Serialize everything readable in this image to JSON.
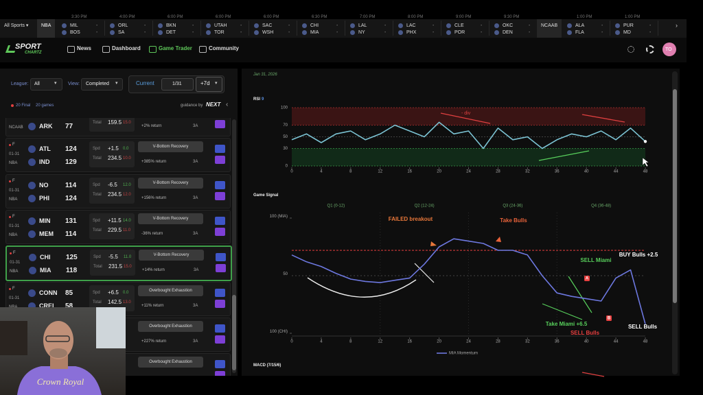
{
  "ticker": {
    "filter": "All Sports ▾",
    "league": "NBA",
    "games": [
      {
        "time": "3:30 PM",
        "away": "MIL",
        "home": "BOS",
        "away_score": "-",
        "home_score": "-"
      },
      {
        "time": "4:00 PM",
        "away": "ORL",
        "home": "SA",
        "away_score": "-",
        "home_score": "-"
      },
      {
        "time": "6:00 PM",
        "away": "BKN",
        "home": "DET",
        "away_score": "-",
        "home_score": "-"
      },
      {
        "time": "6:00 PM",
        "away": "UTAH",
        "home": "TOR",
        "away_score": "-",
        "home_score": "-"
      },
      {
        "time": "6:00 PM",
        "away": "SAC",
        "home": "WSH",
        "away_score": "-",
        "home_score": "-"
      },
      {
        "time": "6:30 PM",
        "away": "CHI",
        "home": "MIA",
        "away_score": "-",
        "home_score": "-"
      },
      {
        "time": "7:00 PM",
        "away": "LAL",
        "home": "NY",
        "away_score": "-",
        "home_score": "-"
      },
      {
        "time": "8:00 PM",
        "away": "LAC",
        "home": "PHX",
        "away_score": "-",
        "home_score": "-"
      },
      {
        "time": "9:00 PM",
        "away": "CLE",
        "home": "POR",
        "away_score": "-",
        "home_score": "-"
      },
      {
        "time": "9:30 PM",
        "away": "OKC",
        "home": "DEN",
        "away_score": "-",
        "home_score": "-"
      }
    ],
    "section": "NCAAB",
    "section_games": [
      {
        "time": "1:00 PM",
        "away": "ALA",
        "home": "FLA",
        "away_score": "-",
        "home_score": "-"
      },
      {
        "time": "1:00 PM",
        "away": "PUR",
        "home": "MD",
        "away_score": "-",
        "home_score": "-"
      }
    ]
  },
  "nav": {
    "logo_top": "SPORT",
    "logo_bottom": "CHARTZ",
    "links": [
      "News",
      "Dashboard",
      "Game Trader",
      "Community"
    ],
    "avatar": "TO"
  },
  "filters": {
    "league_label": "League:",
    "league": "All",
    "view_label": "View:",
    "view": "Completed",
    "current": "Current",
    "date": "1/31",
    "range": "+7d"
  },
  "summary": {
    "final": "20 Final",
    "games": "20 games",
    "guidance": "guidance by",
    "partner": "NEXT"
  },
  "games": [
    {
      "league": "NCAAB",
      "home": {
        "abbr": "ARK",
        "score": 77
      },
      "total": {
        "label": "Total",
        "line": "159.5",
        "juice": "15.0"
      },
      "return": "+2% return",
      "grade": "3A"
    },
    {
      "status": "F",
      "date": "01-31",
      "league": "NBA",
      "away": {
        "abbr": "ATL",
        "score": 124
      },
      "home": {
        "abbr": "IND",
        "score": 129
      },
      "spread": {
        "label": "Spd",
        "line": "+1.5",
        "juice": "0.0"
      },
      "total": {
        "label": "Total",
        "line": "234.5",
        "juice": "10.0"
      },
      "pattern": "V-Bottom Recovery",
      "return": "+385% return",
      "grade": "3A"
    },
    {
      "status": "F",
      "date": "01-31",
      "league": "NBA",
      "away": {
        "abbr": "NO",
        "score": 114
      },
      "home": {
        "abbr": "PHI",
        "score": 124
      },
      "spread": {
        "label": "Spd",
        "line": "-6.5",
        "juice": "12.0"
      },
      "total": {
        "label": "Total",
        "line": "234.5",
        "juice": "12.0"
      },
      "pattern": "V-Bottom Recovery",
      "return": "+156% return",
      "grade": "3A"
    },
    {
      "status": "F",
      "date": "01-31",
      "league": "NBA",
      "away": {
        "abbr": "MIN",
        "score": 131
      },
      "home": {
        "abbr": "MEM",
        "score": 114
      },
      "spread": {
        "label": "Spd",
        "line": "+11.5",
        "juice": "14.0"
      },
      "total": {
        "label": "Total",
        "line": "229.5",
        "juice": "11.0"
      },
      "pattern": "V-Bottom Recovery",
      "return": "-36% return",
      "grade": "3A"
    },
    {
      "status": "F",
      "date": "01-31",
      "league": "NBA",
      "selected": true,
      "away": {
        "abbr": "CHI",
        "score": 125
      },
      "home": {
        "abbr": "MIA",
        "score": 118
      },
      "spread": {
        "label": "Spd",
        "line": "-5.5",
        "juice": "11.0"
      },
      "total": {
        "label": "Total",
        "line": "231.5",
        "juice": "15.0"
      },
      "pattern": "V-Bottom Recovery",
      "return": "+14% return",
      "grade": "3A"
    },
    {
      "status": "F",
      "date": "01-31",
      "league": "NBA",
      "away": {
        "abbr": "CONN",
        "score": 85
      },
      "home": {
        "abbr": "CREI",
        "score": 58
      },
      "spread": {
        "label": "Spd",
        "line": "+6.5",
        "juice": "0.0"
      },
      "total": {
        "label": "Total",
        "line": "142.5",
        "juice": "13.0"
      },
      "pattern": "Overbought Exhaustion",
      "return": "+11% return",
      "grade": "3A"
    },
    {
      "pattern": "Overbought Exhaustion",
      "return": "+227% return",
      "grade": "3A"
    },
    {
      "pattern": "Overbought Exhaustion"
    }
  ],
  "date": "Jan 31, 2026",
  "rsi_chart": {
    "type": "line",
    "title": "RSI",
    "period": "9",
    "color": "#7cc4d4",
    "x": [
      0,
      2,
      4,
      6,
      8,
      10,
      12,
      14,
      16,
      18,
      20,
      22,
      24,
      26,
      28,
      30,
      32,
      34,
      36,
      38,
      40,
      42,
      44,
      46,
      48
    ],
    "values": [
      45,
      55,
      40,
      55,
      60,
      45,
      55,
      70,
      60,
      50,
      75,
      55,
      60,
      30,
      65,
      45,
      50,
      30,
      45,
      55,
      50,
      60,
      45,
      65,
      42
    ],
    "xlim": [
      0,
      48
    ],
    "ylim": [
      0,
      100
    ],
    "xticks": [
      0,
      4,
      8,
      12,
      16,
      20,
      24,
      28,
      32,
      36,
      40,
      44,
      48
    ],
    "yticks": [
      0,
      30,
      50,
      70,
      100
    ],
    "overbought": 70,
    "oversold": 30,
    "annotation": "- div"
  },
  "signal_chart": {
    "type": "line",
    "title": "Game Signal",
    "series_name": "MIA Momentum",
    "color": "#6d78e0",
    "x": [
      0,
      2,
      4,
      6,
      8,
      10,
      12,
      14,
      16,
      18,
      20,
      22,
      24,
      26,
      28,
      30,
      32,
      34,
      36,
      38,
      40,
      42,
      44,
      46,
      48
    ],
    "values": [
      68,
      62,
      58,
      52,
      47,
      45,
      44,
      46,
      48,
      60,
      75,
      82,
      80,
      78,
      72,
      72,
      68,
      50,
      35,
      32,
      30,
      28,
      48,
      55,
      8
    ],
    "xlim": [
      0,
      48
    ],
    "ylim": [
      0,
      100
    ],
    "xticks": [
      0,
      4,
      8,
      12,
      16,
      20,
      24,
      28,
      32,
      36,
      40,
      44,
      48
    ],
    "yticks": [
      {
        "value": 0,
        "label": "100 (CHI)"
      },
      {
        "value": 50,
        "label": "50"
      },
      {
        "value": 100,
        "label": "100 (MIA)"
      }
    ],
    "reference_value": 72,
    "quarters": [
      "Q1 (0-12)",
      "Q2 (12-24)",
      "Q3 (24-36)",
      "Q4 (36-48)"
    ],
    "annotations": [
      {
        "text": "FAILED breakout",
        "color": "#e8773a"
      },
      {
        "text": "Take Bulls",
        "color": "#e8623a"
      },
      {
        "text": "BUY Bulls +2.5",
        "color": "#ffffff"
      },
      {
        "text": "SELL Miami",
        "color": "#58d05c"
      },
      {
        "text": "Take Miami +6.5",
        "color": "#58d05c"
      },
      {
        "text": "SELL Bulls",
        "color": "#e84040"
      },
      {
        "text": "SELL Bulls",
        "color": "#ffffff"
      },
      {
        "text": "A",
        "color": "#e84040"
      },
      {
        "text": "B",
        "color": "#e84040"
      }
    ]
  },
  "macd": {
    "title": "MACD (7/15/6)"
  },
  "webcam": {
    "shirt_text": "Crown Royal"
  }
}
